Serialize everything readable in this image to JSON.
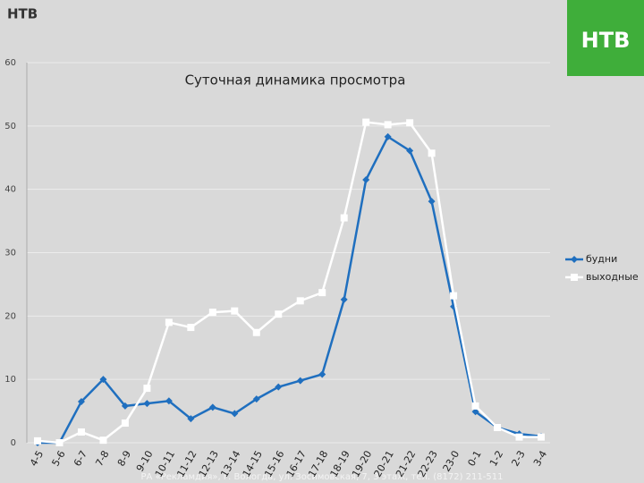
{
  "header": {
    "title": "НТВ",
    "logo": "НТВ"
  },
  "chart_data": {
    "type": "line",
    "title": "Суточная динамика просмотра",
    "categories": [
      "4-5",
      "5-6",
      "6-7",
      "7-8",
      "8-9",
      "9-10",
      "10-11",
      "11-12",
      "12-13",
      "13-14",
      "14-15",
      "15-16",
      "16-17",
      "17-18",
      "18-19",
      "19-20",
      "20-21",
      "21-22",
      "22-23",
      "23-0",
      "0-1",
      "1-2",
      "2-3",
      "3-4"
    ],
    "series": [
      {
        "name": "будни",
        "color": "#1f6fbf",
        "marker": "diamond",
        "values": [
          0,
          0,
          6.5,
          10,
          5.8,
          6.2,
          6.6,
          3.8,
          5.6,
          4.6,
          6.9,
          8.8,
          9.8,
          10.8,
          22.6,
          41.5,
          48.3,
          46.1,
          38.1,
          21.5,
          4.9,
          2.4,
          1.4,
          1.0
        ]
      },
      {
        "name": "выходные",
        "color": "#ffffff",
        "marker": "square",
        "values": [
          0.3,
          0,
          1.7,
          0.4,
          3.1,
          8.6,
          19,
          18.2,
          20.6,
          20.8,
          17.4,
          20.3,
          22.4,
          23.7,
          35.5,
          50.6,
          50.2,
          50.5,
          45.7,
          23.2,
          5.8,
          2.4,
          0.9,
          0.9
        ]
      }
    ],
    "ylim": [
      0,
      60
    ],
    "yticks": [
      0,
      10,
      20,
      30,
      40,
      50,
      60
    ],
    "grid": true,
    "legend": "right"
  },
  "footer": "РА «Рекламдия», г. Вологда, ул. Зосимовская, 7, 3 этаж, тел. (8172) 211-511"
}
